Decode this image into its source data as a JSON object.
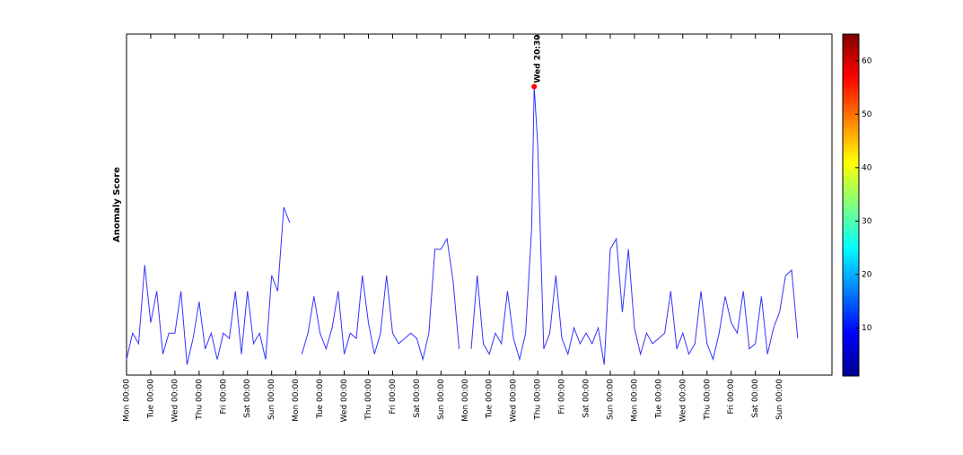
{
  "chart_data": {
    "type": "line",
    "ylabel": "Anomaly Score",
    "color": "#3333ff",
    "xlim": [
      0,
      700
    ],
    "ylim": [
      0,
      65
    ],
    "xticks": [
      {
        "value": 0,
        "label": "Mon 00:00"
      },
      {
        "value": 24,
        "label": "Tue 00:00"
      },
      {
        "value": 48,
        "label": "Wed 00:00"
      },
      {
        "value": 72,
        "label": "Thu 00:00"
      },
      {
        "value": 96,
        "label": "Fri 00:00"
      },
      {
        "value": 120,
        "label": "Sat 00:00"
      },
      {
        "value": 144,
        "label": "Sun 00:00"
      },
      {
        "value": 168,
        "label": "Mon 00:00"
      },
      {
        "value": 192,
        "label": "Tue 00:00"
      },
      {
        "value": 216,
        "label": "Wed 00:00"
      },
      {
        "value": 240,
        "label": "Thu 00:00"
      },
      {
        "value": 264,
        "label": "Fri 00:00"
      },
      {
        "value": 288,
        "label": "Sat 00:00"
      },
      {
        "value": 312,
        "label": "Sun 00:00"
      },
      {
        "value": 336,
        "label": "Mon 00:00"
      },
      {
        "value": 360,
        "label": "Tue 00:00"
      },
      {
        "value": 384,
        "label": "Wed 00:00"
      },
      {
        "value": 408,
        "label": "Thu 00:00"
      },
      {
        "value": 432,
        "label": "Fri 00:00"
      },
      {
        "value": 456,
        "label": "Sat 00:00"
      },
      {
        "value": 480,
        "label": "Sun 00:00"
      },
      {
        "value": 504,
        "label": "Mon 00:00"
      },
      {
        "value": 528,
        "label": "Tue 00:00"
      },
      {
        "value": 552,
        "label": "Wed 00:00"
      },
      {
        "value": 576,
        "label": "Thu 00:00"
      },
      {
        "value": 600,
        "label": "Fri 00:00"
      },
      {
        "value": 624,
        "label": "Sat 00:00"
      },
      {
        "value": 648,
        "label": "Sun 00:00"
      }
    ],
    "x": [
      0,
      6,
      12,
      18,
      24,
      30,
      36,
      42,
      48,
      54,
      60,
      66,
      72,
      78,
      84,
      90,
      96,
      102,
      108,
      114,
      120,
      126,
      132,
      138,
      144,
      150,
      156,
      162,
      168,
      174,
      180,
      186,
      192,
      198,
      204,
      210,
      216,
      222,
      228,
      234,
      240,
      246,
      252,
      258,
      264,
      270,
      276,
      282,
      288,
      294,
      300,
      306,
      312,
      318,
      324,
      330,
      336,
      342,
      348,
      354,
      360,
      366,
      372,
      378,
      384,
      390,
      396,
      402,
      404.5,
      408,
      414,
      420,
      426,
      432,
      438,
      444,
      450,
      456,
      462,
      468,
      474,
      480,
      486,
      492,
      498,
      504,
      510,
      516,
      522,
      528,
      534,
      540,
      546,
      552,
      558,
      564,
      570,
      576,
      582,
      588,
      594,
      600,
      606,
      612,
      618,
      624,
      630,
      636,
      642,
      648,
      654,
      660,
      666
    ],
    "values": [
      3,
      8,
      6,
      21,
      10,
      16,
      4,
      8,
      8,
      16,
      2,
      7,
      14,
      5,
      8,
      3,
      8,
      7,
      16,
      4,
      16,
      6,
      8,
      3,
      19,
      16,
      32,
      29,
      null,
      4,
      8,
      15,
      8,
      5,
      9,
      16,
      4,
      8,
      7,
      19,
      10,
      4,
      8,
      19,
      8,
      6,
      7,
      8,
      7,
      3,
      8,
      24,
      24,
      26,
      18,
      5,
      null,
      5,
      19,
      6,
      4,
      8,
      6,
      16,
      7,
      3,
      8,
      28,
      55,
      44,
      5,
      8,
      19,
      7,
      4,
      9,
      6,
      8,
      6,
      9,
      2,
      24,
      26,
      12,
      24,
      9,
      4,
      8,
      6,
      7,
      8,
      16,
      5,
      8,
      4,
      6,
      16,
      6,
      3,
      8,
      15,
      10,
      8,
      16,
      5,
      6,
      15,
      4,
      9,
      12,
      19,
      20,
      7
    ],
    "peak": {
      "label": "Wed 20:30",
      "x": 404.5,
      "value": 55,
      "color": "#ff0000"
    },
    "colorbar": {
      "clim": [
        1,
        65
      ],
      "ticks": [
        10,
        20,
        30,
        40,
        50,
        60
      ]
    }
  }
}
